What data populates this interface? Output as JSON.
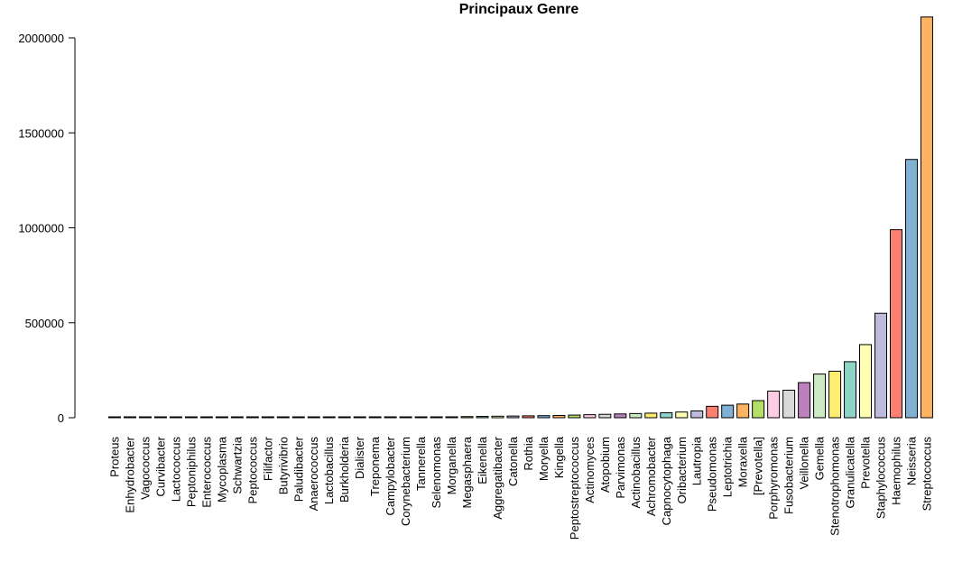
{
  "chart_data": {
    "type": "bar",
    "title": "Principaux Genre",
    "xlabel": "",
    "ylabel": "",
    "ylim": [
      0,
      2120000
    ],
    "yticks": [
      0,
      500000,
      1000000,
      1500000,
      2000000
    ],
    "ytick_labels": [
      "0",
      "500000",
      "1000000",
      "1500000",
      "2000000"
    ],
    "grid": false,
    "legend": "none",
    "categories": [
      "Proteus",
      "Enhydrobacter",
      "Vagococcus",
      "Curvibacter",
      "Lactococcus",
      "Peptoniphilus",
      "Enterococcus",
      "Mycoplasma",
      "Schwartzia",
      "Peptococcus",
      "Filifactor",
      "Butyrivibrio",
      "Paludibacter",
      "Anaerococcus",
      "Lactobacillus",
      "Burkholderia",
      "Dialister",
      "Treponema",
      "Campylobacter",
      "Corynebacterium",
      "Tannerella",
      "Selenomonas",
      "Morganella",
      "Megasphaera",
      "Eikenella",
      "Aggregatibacter",
      "Catonella",
      "Rothia",
      "Moryella",
      "Kingella",
      "Peptostreptococcus",
      "Actinomyces",
      "Atopobium",
      "Parvimonas",
      "Actinobacillus",
      "Achromobacter",
      "Capnocytophaga",
      "Oribacterium",
      "Lautropia",
      "Pseudomonas",
      "Leptotrichia",
      "Moraxella",
      "[Prevotella]",
      "Porphyromonas",
      "Fusobacterium",
      "Veillonella",
      "Gemella",
      "Stenotrophomonas",
      "Granulicatella",
      "Prevotella",
      "Staphylococcus",
      "Haemophilus",
      "Neisseria",
      "Streptococcus"
    ],
    "values": [
      500,
      600,
      700,
      800,
      900,
      1000,
      1100,
      1200,
      1300,
      1400,
      1500,
      1600,
      1800,
      2000,
      2200,
      2400,
      2600,
      2800,
      3000,
      3200,
      3500,
      4000,
      5000,
      6000,
      7000,
      8000,
      9000,
      10000,
      11000,
      12000,
      14000,
      16000,
      18000,
      20000,
      22000,
      24000,
      26000,
      30000,
      36000,
      60000,
      66000,
      72000,
      90000,
      140000,
      145000,
      185000,
      230000,
      245000,
      295000,
      385000,
      550000,
      990000,
      1360000,
      2110000
    ],
    "colors": [
      "#8DD3C7",
      "#FFFFB3",
      "#BEBADA",
      "#FB8072",
      "#80B1D3",
      "#FDB462",
      "#B3DE69",
      "#FCCDE5",
      "#D9D9D9",
      "#BC80BD",
      "#CCEBC5",
      "#FFED6F"
    ]
  }
}
